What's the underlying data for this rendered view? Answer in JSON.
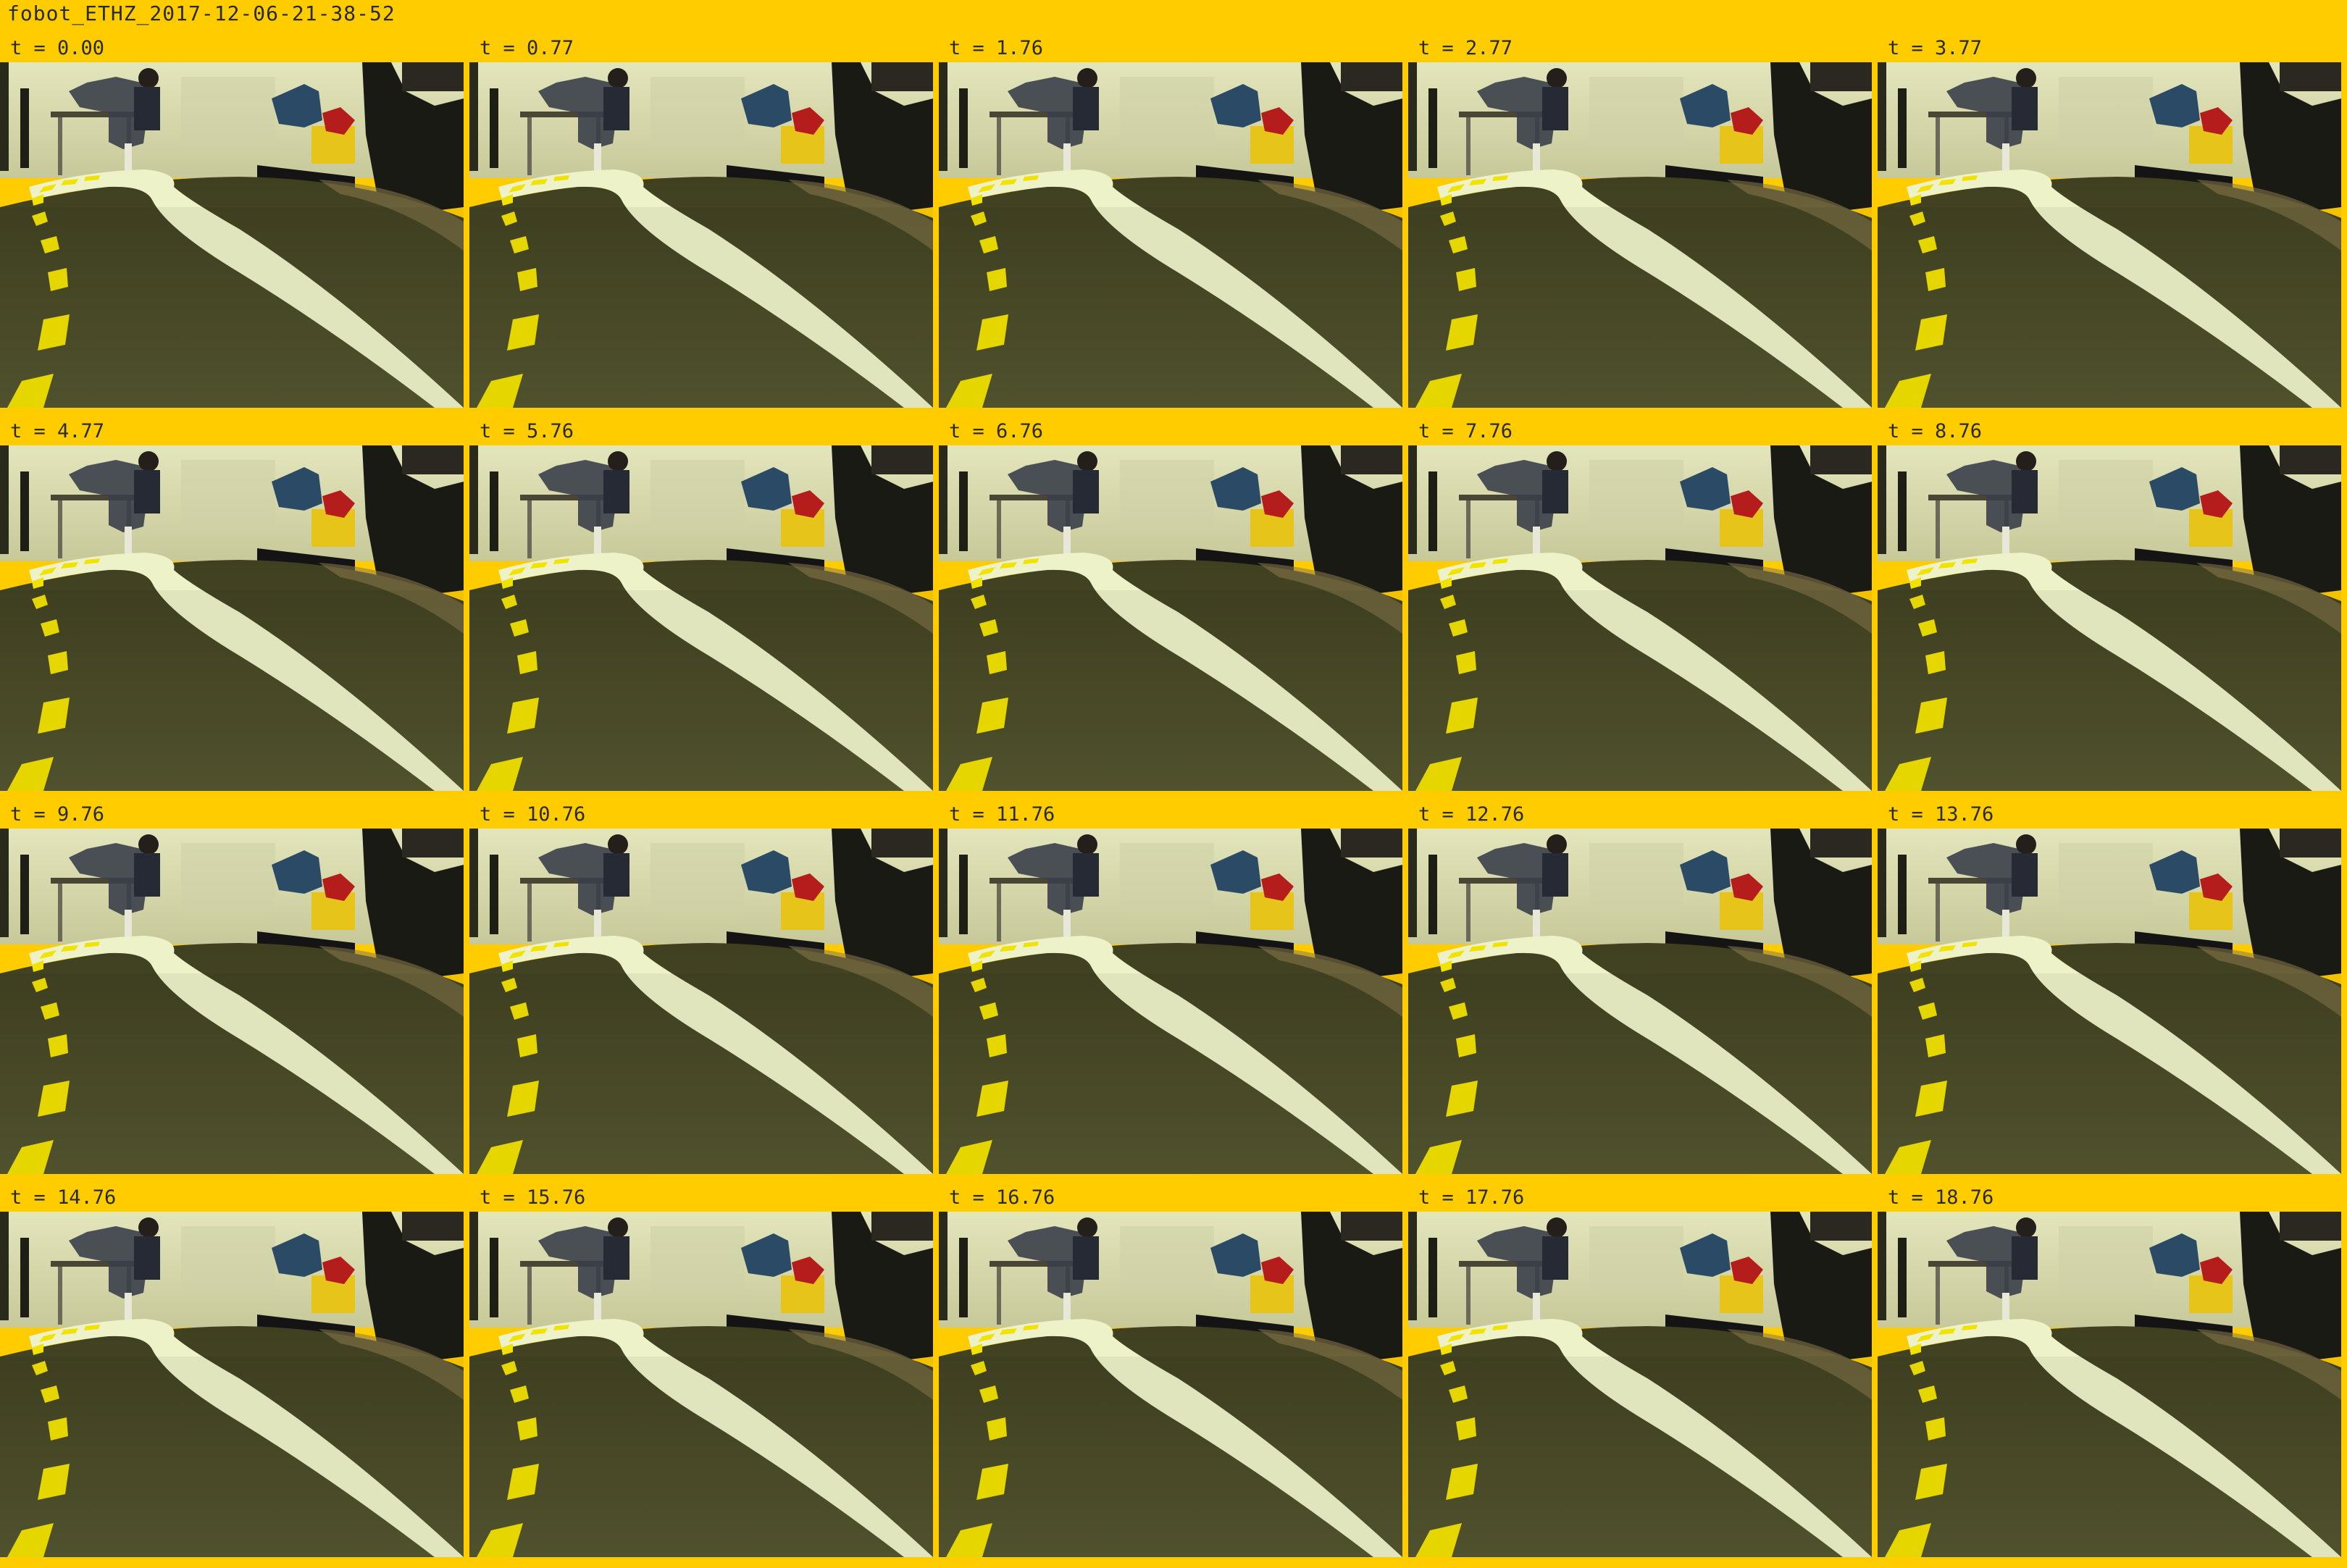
{
  "title": "fobot_ETHZ_2017-12-06-21-38-52",
  "frames": [
    {
      "label": "t = 0.00"
    },
    {
      "label": "t = 0.77"
    },
    {
      "label": "t = 1.76"
    },
    {
      "label": "t = 2.77"
    },
    {
      "label": "t = 3.77"
    },
    {
      "label": "t = 4.77"
    },
    {
      "label": "t = 5.76"
    },
    {
      "label": "t = 6.76"
    },
    {
      "label": "t = 7.76"
    },
    {
      "label": "t = 8.76"
    },
    {
      "label": "t = 9.76"
    },
    {
      "label": "t = 10.76"
    },
    {
      "label": "t = 11.76"
    },
    {
      "label": "t = 12.76"
    },
    {
      "label": "t = 13.76"
    },
    {
      "label": "t = 14.76"
    },
    {
      "label": "t = 15.76"
    },
    {
      "label": "t = 16.76"
    },
    {
      "label": "t = 17.76"
    },
    {
      "label": "t = 18.76"
    }
  ],
  "colors": {
    "background": "#FFCC00",
    "floor": "#4c4d27",
    "wall": "#d9dcb0",
    "white_lane": "#eef2c8",
    "yellow_dash": "#f2e200"
  }
}
